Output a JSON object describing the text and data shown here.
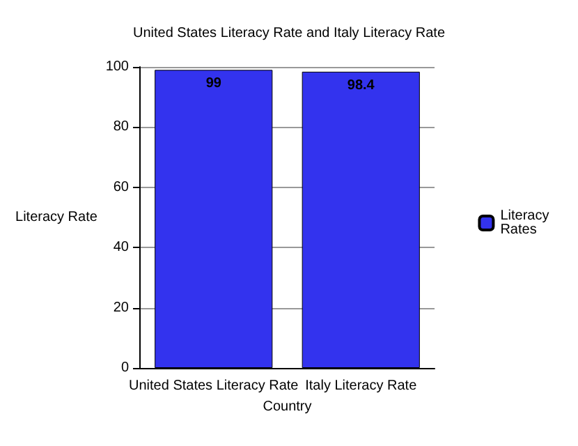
{
  "chart_data": {
    "type": "bar",
    "title": "United States Literacy Rate and Italy Literacy Rate",
    "xlabel": "Country",
    "ylabel": "Literacy Rate",
    "categories": [
      "United States Literacy Rate",
      "Italy Literacy Rate"
    ],
    "series": [
      {
        "name": "Literacy Rates",
        "color": "#3333ee",
        "values": [
          99,
          98.4
        ]
      }
    ],
    "ylim": [
      0,
      100
    ],
    "yticks": [
      0,
      20,
      40,
      60,
      80,
      100
    ],
    "grid": "y",
    "legend": "right",
    "data_labels": true
  }
}
